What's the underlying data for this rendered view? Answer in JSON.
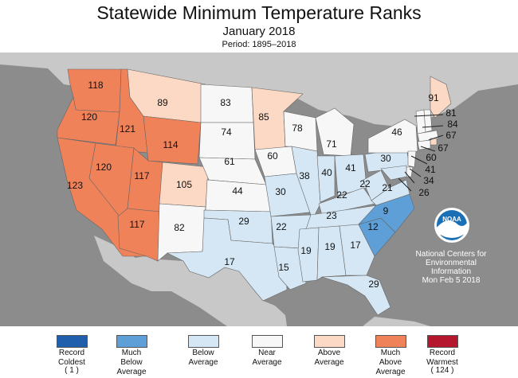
{
  "header": {
    "title": "Statewide Minimum Temperature Ranks",
    "subtitle": "January 2018",
    "period": "Period: 1895–2018"
  },
  "colors": {
    "ocean": "#8c8c8c",
    "other_land": "#c8c8c8",
    "record_coldest": "#1f5fab",
    "much_below": "#5d9fd6",
    "below": "#d5e7f4",
    "near": "#f7f7f7",
    "above": "#fcd9c4",
    "much_above": "#f0825a",
    "record_warmest": "#b5172f"
  },
  "states": [
    {
      "abbr": "WA",
      "rank": "118",
      "category": "much_above"
    },
    {
      "abbr": "OR",
      "rank": "120",
      "category": "much_above"
    },
    {
      "abbr": "CA",
      "rank": "123",
      "category": "much_above"
    },
    {
      "abbr": "ID",
      "rank": "121",
      "category": "much_above"
    },
    {
      "abbr": "NV",
      "rank": "120",
      "category": "much_above"
    },
    {
      "abbr": "MT",
      "rank": "89",
      "category": "above"
    },
    {
      "abbr": "WY",
      "rank": "114",
      "category": "much_above"
    },
    {
      "abbr": "UT",
      "rank": "117",
      "category": "much_above"
    },
    {
      "abbr": "AZ",
      "rank": "117",
      "category": "much_above"
    },
    {
      "abbr": "CO",
      "rank": "105",
      "category": "above"
    },
    {
      "abbr": "NM",
      "rank": "82",
      "category": "near"
    },
    {
      "abbr": "ND",
      "rank": "83",
      "category": "near"
    },
    {
      "abbr": "SD",
      "rank": "74",
      "category": "near"
    },
    {
      "abbr": "NE",
      "rank": "61",
      "category": "near"
    },
    {
      "abbr": "KS",
      "rank": "44",
      "category": "near"
    },
    {
      "abbr": "OK",
      "rank": "29",
      "category": "below"
    },
    {
      "abbr": "TX",
      "rank": "17",
      "category": "below"
    },
    {
      "abbr": "MN",
      "rank": "85",
      "category": "above"
    },
    {
      "abbr": "IA",
      "rank": "60",
      "category": "near"
    },
    {
      "abbr": "MO",
      "rank": "30",
      "category": "below"
    },
    {
      "abbr": "AR",
      "rank": "22",
      "category": "below"
    },
    {
      "abbr": "LA",
      "rank": "15",
      "category": "below"
    },
    {
      "abbr": "WI",
      "rank": "78",
      "category": "near"
    },
    {
      "abbr": "IL",
      "rank": "38",
      "category": "below"
    },
    {
      "abbr": "MI",
      "rank": "71",
      "category": "near"
    },
    {
      "abbr": "IN",
      "rank": "40",
      "category": "below"
    },
    {
      "abbr": "OH",
      "rank": "41",
      "category": "below"
    },
    {
      "abbr": "KY",
      "rank": "22",
      "category": "below"
    },
    {
      "abbr": "TN",
      "rank": "23",
      "category": "below"
    },
    {
      "abbr": "MS",
      "rank": "19",
      "category": "below"
    },
    {
      "abbr": "AL",
      "rank": "19",
      "category": "below"
    },
    {
      "abbr": "GA",
      "rank": "17",
      "category": "below"
    },
    {
      "abbr": "FL",
      "rank": "29",
      "category": "below"
    },
    {
      "abbr": "SC",
      "rank": "12",
      "category": "much_below"
    },
    {
      "abbr": "NC",
      "rank": "9",
      "category": "much_below"
    },
    {
      "abbr": "VA",
      "rank": "21",
      "category": "below"
    },
    {
      "abbr": "WV",
      "rank": "22",
      "category": "below"
    },
    {
      "abbr": "PA",
      "rank": "30",
      "category": "below"
    },
    {
      "abbr": "NY",
      "rank": "46",
      "category": "near"
    },
    {
      "abbr": "VT",
      "rank": "",
      "category": "near"
    },
    {
      "abbr": "NH",
      "rank": "",
      "category": "near"
    },
    {
      "abbr": "ME",
      "rank": "91",
      "category": "above"
    },
    {
      "abbr": "MA",
      "rank": "81",
      "category": "near"
    },
    {
      "abbr": "RI",
      "rank": "84",
      "category": "above"
    },
    {
      "abbr": "CT",
      "rank": "67",
      "category": "near"
    },
    {
      "abbr": "NJ",
      "rank": "67",
      "category": "near"
    },
    {
      "abbr": "DE",
      "rank": "60",
      "category": "near"
    },
    {
      "abbr": "MD",
      "rank": "41",
      "category": "below"
    },
    {
      "abbr": "DC",
      "rank": "34",
      "category": "below"
    },
    {
      "abbr": "VA-coast",
      "rank": "26",
      "category": "below"
    }
  ],
  "credit": {
    "org_line1": "National Centers for",
    "org_line2": "Environmental",
    "org_line3": "Information",
    "date": "Mon Feb  5 2018",
    "logo_text": "NOAA"
  },
  "legend": [
    {
      "label1": "Record",
      "label2": "Coldest",
      "label3": "",
      "count": "( 1 )",
      "category": "record_coldest"
    },
    {
      "label1": "Much",
      "label2": "Below",
      "label3": "Average",
      "count": "",
      "category": "much_below"
    },
    {
      "label1": "Below",
      "label2": "Average",
      "label3": "",
      "count": "",
      "category": "below"
    },
    {
      "label1": "Near",
      "label2": "Average",
      "label3": "",
      "count": "",
      "category": "near"
    },
    {
      "label1": "Above",
      "label2": "Average",
      "label3": "",
      "count": "",
      "category": "above"
    },
    {
      "label1": "Much",
      "label2": "Above",
      "label3": "Average",
      "count": "",
      "category": "much_above"
    },
    {
      "label1": "Record",
      "label2": "Warmest",
      "label3": "",
      "count": "( 124 )",
      "category": "record_warmest"
    }
  ]
}
